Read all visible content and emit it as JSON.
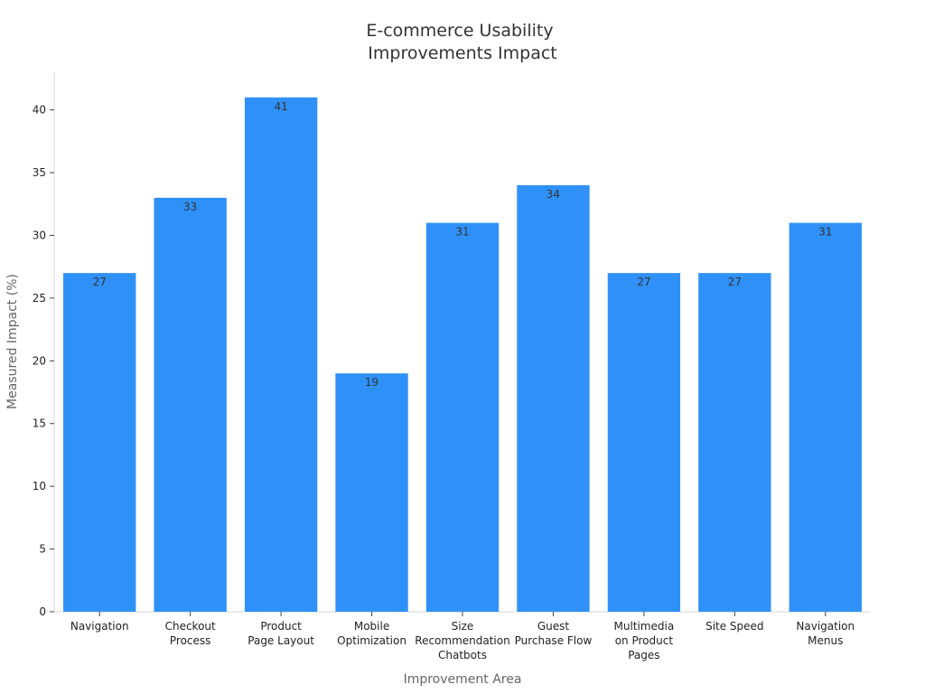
{
  "chart_data": {
    "type": "bar",
    "title_lines": [
      "E-commerce Usability",
      "Improvements Impact"
    ],
    "xlabel": "Improvement Area",
    "ylabel": "Measured Impact (%)",
    "categories": [
      [
        "Navigation"
      ],
      [
        "Checkout",
        "Process"
      ],
      [
        "Product",
        "Page Layout"
      ],
      [
        "Mobile",
        "Optimization"
      ],
      [
        "Size",
        "Recommendation",
        "Chatbots"
      ],
      [
        "Guest",
        "Purchase Flow"
      ],
      [
        "Multimedia",
        "on Product",
        "Pages"
      ],
      [
        "Site Speed"
      ],
      [
        "Navigation",
        "Menus"
      ]
    ],
    "values": [
      27,
      33,
      41,
      19,
      31,
      34,
      27,
      27,
      31
    ],
    "ylim": [
      0,
      43
    ],
    "yticks": [
      0,
      5,
      10,
      15,
      20,
      25,
      30,
      35,
      40
    ],
    "bar_color": "#2f91f7",
    "grid": false,
    "legend": false,
    "data_labels": true
  }
}
